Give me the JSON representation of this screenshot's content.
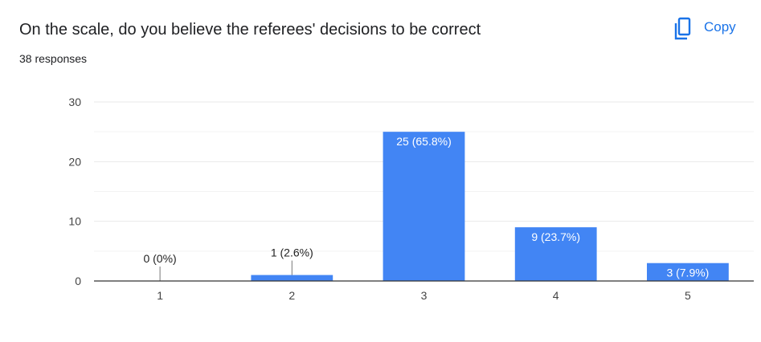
{
  "header": {
    "title": "On the scale, do you believe the referees' decisions to be correct",
    "responses": "38 responses",
    "copy_label": "Copy"
  },
  "colors": {
    "bar": "#4285f4",
    "accent": "#1a73e8",
    "grid": "#e9e9e9",
    "axis": "#333333"
  },
  "icons": {
    "copy": "copy-icon"
  },
  "chart_data": {
    "type": "bar",
    "title": "On the scale, do you believe the referees' decisions to be correct",
    "xlabel": "",
    "ylabel": "",
    "categories": [
      "1",
      "2",
      "3",
      "4",
      "5"
    ],
    "values": [
      0,
      1,
      25,
      9,
      3
    ],
    "data_labels": [
      "0 (0%)",
      "1 (2.6%)",
      "25 (65.8%)",
      "9 (23.7%)",
      "3 (7.9%)"
    ],
    "ylim": [
      0,
      30
    ],
    "yticks": [
      0,
      10,
      20,
      30
    ],
    "grid": true,
    "legend": "none"
  }
}
